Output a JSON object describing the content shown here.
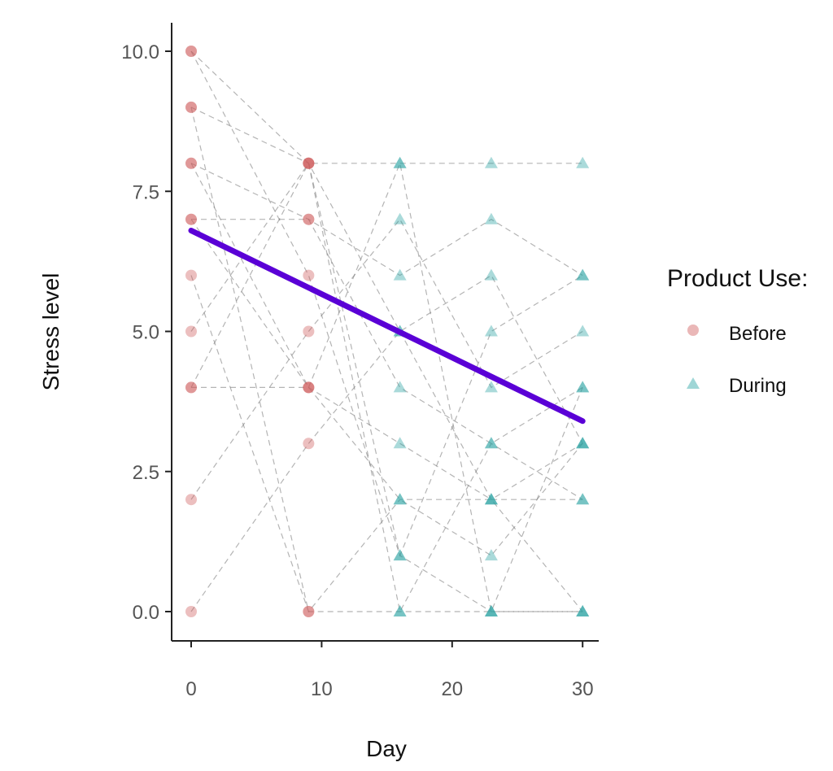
{
  "chart_data": {
    "type": "scatter",
    "title": "",
    "xlabel": "Day",
    "ylabel": "Stress level",
    "xlim": [
      -1.5,
      31.5
    ],
    "ylim": [
      -0.5,
      10.5
    ],
    "xticks": [
      0,
      10,
      20,
      30
    ],
    "xtick_labels": [
      "0",
      "10",
      "20",
      "30"
    ],
    "yticks": [
      0,
      2.5,
      5,
      7.5,
      10
    ],
    "ytick_labels": [
      "0.0",
      "2.5",
      "5.0",
      "7.5",
      "10.0"
    ],
    "grid": false,
    "days": [
      0,
      9,
      16,
      23,
      30
    ],
    "phase_by_day": [
      "Before",
      "Before",
      "During",
      "During",
      "During"
    ],
    "subjects": [
      [
        10,
        8,
        8,
        8,
        8
      ],
      [
        9,
        8,
        5,
        2,
        3
      ],
      [
        8,
        7,
        6,
        7,
        6
      ],
      [
        7,
        7,
        4,
        3,
        4
      ],
      [
        6,
        0,
        2,
        2,
        0
      ],
      [
        5,
        8,
        1,
        0,
        0
      ],
      [
        4,
        4,
        3,
        2,
        2
      ],
      [
        2,
        5,
        7,
        4,
        5
      ],
      [
        0,
        3,
        5,
        6,
        3
      ],
      [
        9,
        0,
        0,
        0,
        0
      ],
      [
        8,
        4,
        2,
        1,
        3
      ],
      [
        10,
        6,
        1,
        5,
        6
      ],
      [
        7,
        4,
        8,
        0,
        4
      ],
      [
        4,
        8,
        0,
        3,
        2
      ]
    ],
    "trend_line": {
      "x": [
        0,
        30
      ],
      "y": [
        6.8,
        3.4
      ],
      "color": "#5a00d6"
    },
    "legend": {
      "title": "Product Use:",
      "position": "right",
      "entries": [
        {
          "label": "Before",
          "shape": "circle",
          "color": "#d0605f"
        },
        {
          "label": "During",
          "shape": "triangle",
          "color": "#2aa3a3"
        }
      ]
    }
  }
}
